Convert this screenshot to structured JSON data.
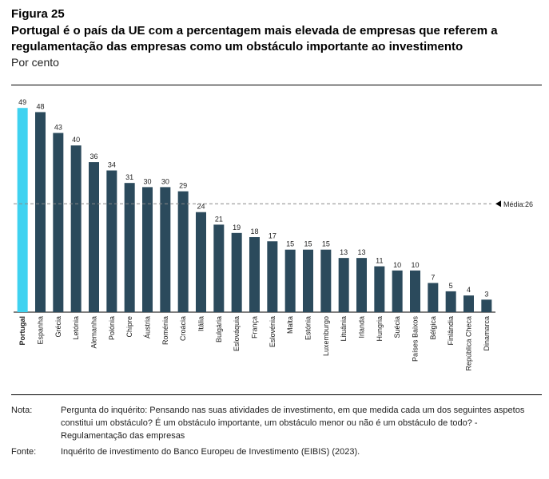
{
  "figure_label": "Figura 25",
  "title": "Portugal é o país da UE com a percentagem mais elevada de empresas que referem a regulamentação das empresas como um obstáculo importante ao investimento",
  "subtitle": "Por cento",
  "notes": {
    "note_key": "Nota:",
    "note_text": "Pergunta do inquérito: Pensando nas suas atividades de investimento, em que medida cada um dos seguintes aspetos constitui um obstáculo? É um obstáculo importante, um obstáculo menor ou não é um obstáculo de todo? - Regulamentação das empresas",
    "source_key": "Fonte:",
    "source_text": "Inquérito de investimento do Banco Europeu de Investimento (EIBIS) (2023)."
  },
  "chart_data": {
    "type": "bar",
    "categories": [
      "Portugal",
      "Espanha",
      "Grécia",
      "Letónia",
      "Alemanha",
      "Polónia",
      "Chipre",
      "Áustria",
      "Roménia",
      "Croácia",
      "Itália",
      "Bulgária",
      "Eslováquia",
      "França",
      "Eslovénia",
      "Malta",
      "Estónia",
      "Luxemburgo",
      "Lituânia",
      "Irlanda",
      "Hungria",
      "Suécia",
      "Países Baixos",
      "Bélgica",
      "Finlândia",
      "República Checa",
      "Dinamarca"
    ],
    "values": [
      49,
      48,
      43,
      40,
      36,
      34,
      31,
      30,
      30,
      29,
      24,
      21,
      19,
      18,
      17,
      15,
      15,
      15,
      13,
      13,
      11,
      10,
      10,
      7,
      5,
      4,
      3
    ],
    "highlight_category": "Portugal",
    "colors": {
      "default": "#2b4a5c",
      "highlight": "#3fd2f0",
      "average_line": "#888888"
    },
    "average": {
      "label": "Média:26",
      "value": 26
    },
    "ylim": [
      0,
      50
    ],
    "grid": false
  }
}
